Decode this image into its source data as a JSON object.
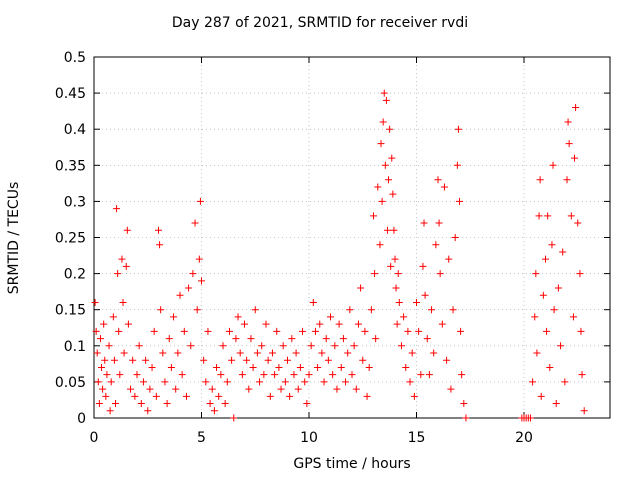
{
  "chart_data": {
    "type": "scatter",
    "title": "Day 287 of 2021, SRMTID for receiver rvdi",
    "xlabel": "GPS time / hours",
    "ylabel": "SRMTID / TECUs",
    "xlim": [
      0,
      24
    ],
    "ylim": [
      0,
      0.5
    ],
    "xticks": [
      0,
      5,
      10,
      15,
      20
    ],
    "yticks": [
      0,
      0.05,
      0.1,
      0.15,
      0.2,
      0.25,
      0.3,
      0.35,
      0.4,
      0.45,
      0.5
    ],
    "grid": true,
    "marker": "plus",
    "series": [
      {
        "color": "#ff0000",
        "points": [
          [
            0.05,
            0.16
          ],
          [
            0.1,
            0.12
          ],
          [
            0.15,
            0.09
          ],
          [
            0.2,
            0.05
          ],
          [
            0.25,
            0.02
          ],
          [
            0.3,
            0.11
          ],
          [
            0.35,
            0.07
          ],
          [
            0.4,
            0.04
          ],
          [
            0.45,
            0.13
          ],
          [
            0.5,
            0.08
          ],
          [
            0.55,
            0.03
          ],
          [
            0.6,
            0.06
          ],
          [
            0.7,
            0.1
          ],
          [
            0.75,
            0.01
          ],
          [
            0.8,
            0.05
          ],
          [
            0.9,
            0.14
          ],
          [
            0.95,
            0.08
          ],
          [
            1.0,
            0.02
          ],
          [
            1.05,
            0.29
          ],
          [
            1.1,
            0.2
          ],
          [
            1.15,
            0.12
          ],
          [
            1.2,
            0.06
          ],
          [
            1.3,
            0.22
          ],
          [
            1.35,
            0.16
          ],
          [
            1.4,
            0.09
          ],
          [
            1.5,
            0.21
          ],
          [
            1.55,
            0.26
          ],
          [
            1.6,
            0.13
          ],
          [
            1.7,
            0.04
          ],
          [
            1.8,
            0.08
          ],
          [
            1.9,
            0.03
          ],
          [
            2.0,
            0.06
          ],
          [
            2.1,
            0.1
          ],
          [
            2.2,
            0.02
          ],
          [
            2.3,
            0.05
          ],
          [
            2.4,
            0.08
          ],
          [
            2.5,
            0.01
          ],
          [
            2.6,
            0.04
          ],
          [
            2.7,
            0.07
          ],
          [
            2.8,
            0.12
          ],
          [
            2.9,
            0.03
          ],
          [
            3.0,
            0.26
          ],
          [
            3.05,
            0.24
          ],
          [
            3.1,
            0.15
          ],
          [
            3.2,
            0.09
          ],
          [
            3.3,
            0.05
          ],
          [
            3.4,
            0.02
          ],
          [
            3.5,
            0.11
          ],
          [
            3.6,
            0.07
          ],
          [
            3.7,
            0.14
          ],
          [
            3.8,
            0.04
          ],
          [
            3.9,
            0.09
          ],
          [
            4.0,
            0.17
          ],
          [
            4.1,
            0.06
          ],
          [
            4.2,
            0.12
          ],
          [
            4.3,
            0.03
          ],
          [
            4.4,
            0.18
          ],
          [
            4.5,
            0.1
          ],
          [
            4.6,
            0.2
          ],
          [
            4.7,
            0.27
          ],
          [
            4.8,
            0.15
          ],
          [
            4.9,
            0.22
          ],
          [
            4.95,
            0.3
          ],
          [
            5.0,
            0.19
          ],
          [
            5.1,
            0.08
          ],
          [
            5.2,
            0.05
          ],
          [
            5.3,
            0.12
          ],
          [
            5.4,
            0.02
          ],
          [
            5.5,
            0.04
          ],
          [
            5.6,
            0.01
          ],
          [
            5.7,
            0.07
          ],
          [
            5.8,
            0.03
          ],
          [
            5.9,
            0.06
          ],
          [
            6.0,
            0.1
          ],
          [
            6.1,
            0.02
          ],
          [
            6.2,
            0.05
          ],
          [
            6.3,
            0.12
          ],
          [
            6.4,
            0.08
          ],
          [
            6.5,
            0.0
          ],
          [
            6.6,
            0.11
          ],
          [
            6.7,
            0.14
          ],
          [
            6.8,
            0.09
          ],
          [
            6.9,
            0.06
          ],
          [
            7.0,
            0.13
          ],
          [
            7.1,
            0.08
          ],
          [
            7.2,
            0.04
          ],
          [
            7.3,
            0.11
          ],
          [
            7.4,
            0.07
          ],
          [
            7.5,
            0.15
          ],
          [
            7.6,
            0.09
          ],
          [
            7.7,
            0.05
          ],
          [
            7.8,
            0.1
          ],
          [
            7.9,
            0.06
          ],
          [
            8.0,
            0.13
          ],
          [
            8.1,
            0.08
          ],
          [
            8.2,
            0.03
          ],
          [
            8.3,
            0.09
          ],
          [
            8.4,
            0.06
          ],
          [
            8.5,
            0.12
          ],
          [
            8.6,
            0.07
          ],
          [
            8.7,
            0.04
          ],
          [
            8.8,
            0.1
          ],
          [
            8.9,
            0.05
          ],
          [
            9.0,
            0.08
          ],
          [
            9.1,
            0.03
          ],
          [
            9.2,
            0.11
          ],
          [
            9.3,
            0.06
          ],
          [
            9.4,
            0.09
          ],
          [
            9.5,
            0.04
          ],
          [
            9.6,
            0.07
          ],
          [
            9.7,
            0.12
          ],
          [
            9.8,
            0.05
          ],
          [
            9.9,
            0.02
          ],
          [
            10.0,
            0.06
          ],
          [
            10.1,
            0.1
          ],
          [
            10.2,
            0.16
          ],
          [
            10.3,
            0.12
          ],
          [
            10.4,
            0.07
          ],
          [
            10.5,
            0.13
          ],
          [
            10.6,
            0.09
          ],
          [
            10.7,
            0.05
          ],
          [
            10.8,
            0.11
          ],
          [
            10.9,
            0.08
          ],
          [
            11.0,
            0.14
          ],
          [
            11.1,
            0.06
          ],
          [
            11.2,
            0.1
          ],
          [
            11.3,
            0.04
          ],
          [
            11.4,
            0.13
          ],
          [
            11.5,
            0.07
          ],
          [
            11.6,
            0.11
          ],
          [
            11.7,
            0.05
          ],
          [
            11.8,
            0.09
          ],
          [
            11.9,
            0.15
          ],
          [
            12.0,
            0.06
          ],
          [
            12.1,
            0.1
          ],
          [
            12.2,
            0.04
          ],
          [
            12.3,
            0.13
          ],
          [
            12.4,
            0.18
          ],
          [
            12.5,
            0.08
          ],
          [
            12.6,
            0.12
          ],
          [
            12.7,
            0.03
          ],
          [
            12.8,
            0.07
          ],
          [
            12.9,
            0.15
          ],
          [
            13.0,
            0.28
          ],
          [
            13.05,
            0.2
          ],
          [
            13.1,
            0.11
          ],
          [
            13.2,
            0.32
          ],
          [
            13.3,
            0.24
          ],
          [
            13.35,
            0.38
          ],
          [
            13.4,
            0.3
          ],
          [
            13.45,
            0.41
          ],
          [
            13.5,
            0.45
          ],
          [
            13.55,
            0.35
          ],
          [
            13.6,
            0.44
          ],
          [
            13.65,
            0.26
          ],
          [
            13.7,
            0.33
          ],
          [
            13.75,
            0.4
          ],
          [
            13.8,
            0.21
          ],
          [
            13.85,
            0.36
          ],
          [
            13.9,
            0.31
          ],
          [
            13.95,
            0.26
          ],
          [
            14.0,
            0.22
          ],
          [
            14.05,
            0.18
          ],
          [
            14.1,
            0.13
          ],
          [
            14.15,
            0.2
          ],
          [
            14.2,
            0.16
          ],
          [
            14.3,
            0.1
          ],
          [
            14.4,
            0.14
          ],
          [
            14.5,
            0.07
          ],
          [
            14.6,
            0.12
          ],
          [
            14.7,
            0.05
          ],
          [
            14.8,
            0.09
          ],
          [
            14.9,
            0.03
          ],
          [
            15.0,
            0.16
          ],
          [
            15.1,
            0.12
          ],
          [
            15.2,
            0.06
          ],
          [
            15.3,
            0.21
          ],
          [
            15.35,
            0.27
          ],
          [
            15.4,
            0.17
          ],
          [
            15.5,
            0.11
          ],
          [
            15.6,
            0.06
          ],
          [
            15.7,
            0.15
          ],
          [
            15.8,
            0.09
          ],
          [
            15.9,
            0.24
          ],
          [
            16.0,
            0.33
          ],
          [
            16.05,
            0.27
          ],
          [
            16.1,
            0.2
          ],
          [
            16.2,
            0.13
          ],
          [
            16.3,
            0.32
          ],
          [
            16.4,
            0.08
          ],
          [
            16.5,
            0.22
          ],
          [
            16.6,
            0.04
          ],
          [
            16.7,
            0.15
          ],
          [
            16.8,
            0.25
          ],
          [
            16.9,
            0.35
          ],
          [
            16.95,
            0.4
          ],
          [
            17.0,
            0.3
          ],
          [
            17.05,
            0.12
          ],
          [
            17.1,
            0.06
          ],
          [
            17.2,
            0.02
          ],
          [
            17.3,
            0.0
          ],
          [
            19.9,
            0.0
          ],
          [
            20.0,
            0.0
          ],
          [
            20.1,
            0.0
          ],
          [
            20.2,
            0.0
          ],
          [
            20.3,
            0.0
          ],
          [
            20.4,
            0.05
          ],
          [
            20.5,
            0.14
          ],
          [
            20.55,
            0.2
          ],
          [
            20.6,
            0.09
          ],
          [
            20.7,
            0.28
          ],
          [
            20.75,
            0.33
          ],
          [
            20.8,
            0.03
          ],
          [
            20.9,
            0.17
          ],
          [
            21.0,
            0.22
          ],
          [
            21.05,
            0.12
          ],
          [
            21.1,
            0.28
          ],
          [
            21.2,
            0.07
          ],
          [
            21.3,
            0.24
          ],
          [
            21.35,
            0.35
          ],
          [
            21.4,
            0.15
          ],
          [
            21.5,
            0.02
          ],
          [
            21.6,
            0.18
          ],
          [
            21.7,
            0.1
          ],
          [
            21.8,
            0.23
          ],
          [
            21.9,
            0.05
          ],
          [
            22.0,
            0.33
          ],
          [
            22.05,
            0.41
          ],
          [
            22.1,
            0.38
          ],
          [
            22.2,
            0.28
          ],
          [
            22.3,
            0.14
          ],
          [
            22.35,
            0.36
          ],
          [
            22.4,
            0.43
          ],
          [
            22.5,
            0.27
          ],
          [
            22.6,
            0.2
          ],
          [
            22.65,
            0.12
          ],
          [
            22.7,
            0.06
          ],
          [
            22.8,
            0.01
          ]
        ]
      }
    ]
  }
}
